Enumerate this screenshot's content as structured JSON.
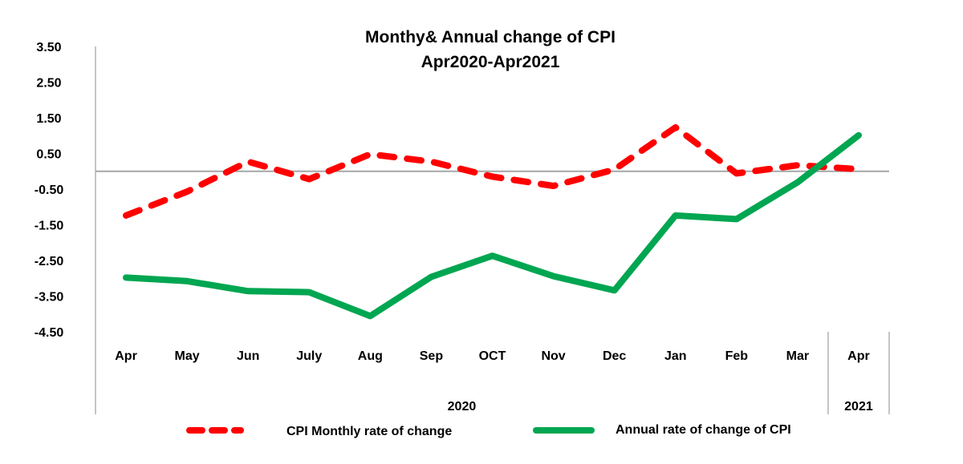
{
  "chart_data": {
    "type": "line",
    "title": "Monthy& Annual change of CPI",
    "subtitle": "Apr2020-Apr2021",
    "categories": [
      "Apr",
      "May",
      "Jun",
      "July",
      "Aug",
      "Sep",
      "OCT",
      "Nov",
      "Dec",
      "Jan",
      "Feb",
      "Mar",
      "Apr"
    ],
    "groups": [
      {
        "label": "2020",
        "start": 0,
        "end": 11
      },
      {
        "label": "2021",
        "start": 12,
        "end": 12
      }
    ],
    "yticks": [
      "3.50",
      "2.50",
      "1.50",
      "0.50",
      "-0.50",
      "-1.50",
      "-2.50",
      "-3.50",
      "-4.50"
    ],
    "ytick_values": [
      3.5,
      2.5,
      1.5,
      0.5,
      -0.5,
      -1.5,
      -2.5,
      -3.5,
      -4.5
    ],
    "ylim": [
      -4.5,
      3.5
    ],
    "grid": false,
    "zero_line": true,
    "legend_position": "bottom",
    "series": [
      {
        "name": "CPI Monthly rate of change",
        "style": "dashed",
        "color": "#ff0000",
        "values": [
          -1.24,
          -0.57,
          0.27,
          -0.22,
          0.48,
          0.27,
          -0.15,
          -0.41,
          0.05,
          1.23,
          -0.06,
          0.17,
          0.06
        ]
      },
      {
        "name": "Annual rate of change of CPI",
        "style": "solid",
        "color": "#00a651",
        "values": [
          -2.98,
          -3.08,
          -3.36,
          -3.39,
          -4.06,
          -2.96,
          -2.37,
          -2.94,
          -3.34,
          -1.24,
          -1.34,
          -0.31,
          1.01
        ]
      }
    ]
  }
}
